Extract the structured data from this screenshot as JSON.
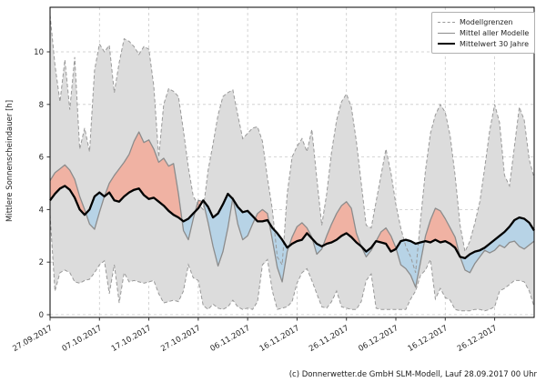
{
  "figure": {
    "footer": "(c) Donnerwetter.de GmbH SLM-Modell, Lauf 28.09.2017 00 Uhr"
  },
  "chart_data": {
    "type": "area",
    "title": "",
    "xlabel": "",
    "ylabel": "Mittlere Sonnenscheindauer [h]",
    "ylim": [
      -0.1,
      11.7
    ],
    "yticks": [
      0,
      2,
      4,
      6,
      8,
      10
    ],
    "grid": true,
    "legend_position": "top-right-inside",
    "legend": [
      "Modellgrenzen",
      "Mittel aller Modelle",
      "Mittelwert 30 Jahre"
    ],
    "x_unit": "days since 27.09.2017",
    "x_range_days": [
      0,
      98
    ],
    "x_tick_days": [
      0,
      10,
      20,
      30,
      40,
      50,
      60,
      70,
      80,
      90
    ],
    "x_tick_labels": [
      "27.09.2017",
      "07.10.2017",
      "17.10.2017",
      "27.10.2017",
      "06.11.2017",
      "16.11.2017",
      "26.11.2017",
      "06.12.2017",
      "16.12.2017",
      "26.12.2017"
    ],
    "fill_rule": "red where model mean above 30y mean, blue where below, gray band between model bounds",
    "colors": {
      "band": "#dcdcdc",
      "bounds_line": "#999999",
      "mean_line": "#8c8c8c",
      "hist_line": "#000000",
      "above_fill": "#f0b2a3",
      "below_fill": "#b7d3e6",
      "grid": "#c9c9c9",
      "spine": "#000000",
      "text": "#262626"
    },
    "series": [
      {
        "name": "Modellgrenzen (obere Grenze)",
        "role": "upper_bound",
        "values": [
          11.4,
          9.5,
          8.1,
          9.7,
          7.8,
          9.8,
          6.3,
          7.1,
          6.2,
          9.3,
          10.3,
          10.0,
          10.25,
          8.45,
          9.6,
          10.5,
          10.4,
          10.2,
          9.9,
          10.2,
          10.1,
          8.7,
          6.0,
          8.0,
          8.6,
          8.5,
          8.3,
          7.0,
          5.6,
          4.5,
          4.2,
          4.0,
          5.5,
          6.5,
          7.6,
          8.3,
          8.45,
          8.55,
          7.6,
          6.7,
          6.9,
          7.1,
          7.15,
          6.6,
          5.2,
          4.0,
          2.2,
          1.9,
          4.6,
          6.0,
          6.4,
          6.7,
          6.2,
          7.05,
          5.2,
          3.4,
          4.6,
          6.2,
          7.4,
          8.1,
          8.4,
          7.9,
          6.6,
          5.0,
          3.4,
          3.3,
          4.3,
          5.3,
          6.3,
          5.4,
          4.2,
          3.3,
          2.6,
          2.2,
          1.6,
          3.6,
          5.5,
          6.9,
          7.6,
          8.0,
          7.7,
          6.8,
          5.3,
          3.4,
          2.4,
          2.8,
          3.5,
          4.3,
          5.6,
          7.0,
          8.0,
          7.3,
          5.3,
          4.9,
          6.4,
          7.9,
          7.4,
          5.9,
          5.2
        ]
      },
      {
        "name": "Modellgrenzen (untere Grenze)",
        "role": "lower_bound",
        "values": [
          3.8,
          0.9,
          1.6,
          1.7,
          1.6,
          1.25,
          1.2,
          1.3,
          1.35,
          1.6,
          1.9,
          2.05,
          0.8,
          1.9,
          0.45,
          1.6,
          1.25,
          1.3,
          1.25,
          1.2,
          1.25,
          1.3,
          0.8,
          0.45,
          0.5,
          0.55,
          0.5,
          0.9,
          1.9,
          1.4,
          1.3,
          0.35,
          0.2,
          0.4,
          0.25,
          0.2,
          0.3,
          0.55,
          0.3,
          0.2,
          0.25,
          0.2,
          0.5,
          1.9,
          2.1,
          0.9,
          0.2,
          0.25,
          0.3,
          0.5,
          1.2,
          1.6,
          1.75,
          1.3,
          0.8,
          0.3,
          0.25,
          0.5,
          0.9,
          0.3,
          0.25,
          0.2,
          0.2,
          0.5,
          1.3,
          1.55,
          0.25,
          0.2,
          0.2,
          0.2,
          0.2,
          0.2,
          0.2,
          0.6,
          0.9,
          1.5,
          1.7,
          2.1,
          0.6,
          1.0,
          0.65,
          0.55,
          0.2,
          0.15,
          0.15,
          0.15,
          0.2,
          0.2,
          0.15,
          0.2,
          0.3,
          0.9,
          1.0,
          1.15,
          1.3,
          1.3,
          1.25,
          0.9,
          0.3
        ]
      },
      {
        "name": "Mittel aller Modelle",
        "role": "model_mean",
        "values": [
          5.1,
          5.4,
          5.55,
          5.7,
          5.5,
          5.15,
          4.5,
          4.0,
          3.45,
          3.25,
          3.9,
          4.5,
          5.0,
          5.3,
          5.55,
          5.8,
          6.1,
          6.6,
          6.95,
          6.55,
          6.65,
          6.3,
          5.8,
          5.95,
          5.65,
          5.75,
          4.6,
          3.2,
          2.85,
          3.65,
          4.35,
          4.3,
          3.5,
          2.6,
          1.85,
          2.4,
          3.3,
          4.45,
          3.45,
          2.85,
          3.0,
          3.45,
          3.85,
          4.0,
          3.85,
          2.85,
          1.8,
          1.25,
          2.4,
          2.95,
          3.35,
          3.5,
          3.3,
          2.95,
          2.3,
          2.5,
          3.0,
          3.45,
          3.85,
          4.15,
          4.3,
          4.05,
          3.1,
          2.6,
          2.2,
          2.45,
          2.8,
          3.15,
          3.3,
          3.0,
          2.55,
          1.9,
          1.75,
          1.5,
          1.05,
          2.0,
          3.0,
          3.6,
          4.05,
          3.95,
          3.65,
          3.3,
          2.95,
          2.2,
          1.7,
          1.6,
          1.95,
          2.2,
          2.45,
          2.35,
          2.45,
          2.65,
          2.55,
          2.75,
          2.8,
          2.6,
          2.5,
          2.65,
          2.8
        ]
      },
      {
        "name": "Mittelwert 30 Jahre",
        "role": "climate_mean",
        "values": [
          4.35,
          4.6,
          4.8,
          4.9,
          4.75,
          4.45,
          4.0,
          3.8,
          4.0,
          4.5,
          4.65,
          4.5,
          4.65,
          4.35,
          4.3,
          4.5,
          4.65,
          4.75,
          4.8,
          4.55,
          4.4,
          4.45,
          4.3,
          4.15,
          3.95,
          3.8,
          3.7,
          3.55,
          3.65,
          3.85,
          4.05,
          4.35,
          4.1,
          3.7,
          3.85,
          4.2,
          4.6,
          4.4,
          4.1,
          3.9,
          3.95,
          3.75,
          3.55,
          3.55,
          3.6,
          3.3,
          3.1,
          2.85,
          2.55,
          2.7,
          2.8,
          2.85,
          3.1,
          2.9,
          2.7,
          2.6,
          2.7,
          2.75,
          2.85,
          3.0,
          3.1,
          2.95,
          2.75,
          2.6,
          2.4,
          2.55,
          2.8,
          2.75,
          2.7,
          2.4,
          2.5,
          2.8,
          2.85,
          2.8,
          2.7,
          2.75,
          2.8,
          2.75,
          2.85,
          2.75,
          2.8,
          2.7,
          2.55,
          2.2,
          2.15,
          2.3,
          2.4,
          2.45,
          2.55,
          2.7,
          2.85,
          3.0,
          3.15,
          3.35,
          3.6,
          3.7,
          3.65,
          3.5,
          3.2
        ]
      }
    ]
  }
}
